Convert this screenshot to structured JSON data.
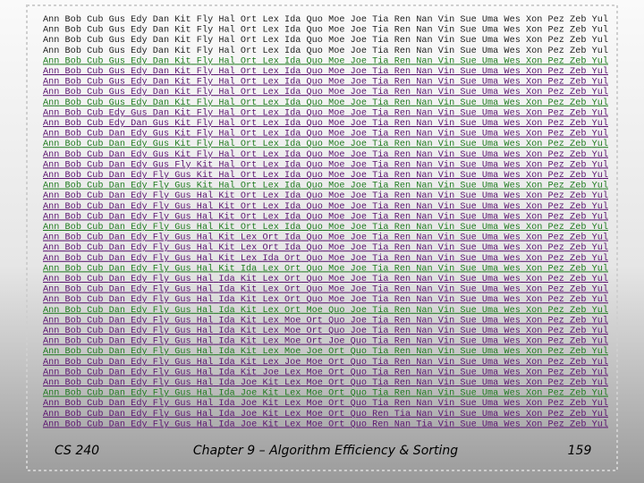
{
  "trace": {
    "rows": [
      "Ann Bob Cub Gus Edy Dan Kit Fly Hal Ort Lex Ida Quo Moe Joe Tia Ren Nan Vin Sue Uma Wes Xon Pez Zeb Yul",
      "Ann Bob Cub Gus Edy Dan Kit Fly Hal Ort Lex Ida Quo Moe Joe Tia Ren Nan Vin Sue Uma Wes Xon Pez Zeb Yul",
      "Ann Bob Cub Gus Edy Dan Kit Fly Hal Ort Lex Ida Quo Moe Joe Tia Ren Nan Vin Sue Uma Wes Xon Pez Zeb Yul",
      "Ann Bob Cub Gus Edy Dan Kit Fly Hal Ort Lex Ida Quo Moe Joe Tia Ren Nan Vin Sue Uma Wes Xon Pez Zeb Yul",
      "Ann Bob Cub Gus Edy Dan Kit Fly Hal Ort Lex Ida Quo Moe Joe Tia Ren Nan Vin Sue Uma Wes Xon Pez Zeb Yul",
      "Ann Bob Cub Gus Edy Dan Kit Fly Hal Ort Lex Ida Quo Moe Joe Tia Ren Nan Vin Sue Uma Wes Xon Pez Zeb Yul",
      "Ann Bob Cub Gus Edy Dan Kit Fly Hal Ort Lex Ida Quo Moe Joe Tia Ren Nan Vin Sue Uma Wes Xon Pez Zeb Yul",
      "Ann Bob Cub Gus Edy Dan Kit Fly Hal Ort Lex Ida Quo Moe Joe Tia Ren Nan Vin Sue Uma Wes Xon Pez Zeb Yul",
      "Ann Bob Cub Gus Edy Dan Kit Fly Hal Ort Lex Ida Quo Moe Joe Tia Ren Nan Vin Sue Uma Wes Xon Pez Zeb Yul",
      "Ann Bob Cub Edy Gus Dan Kit Fly Hal Ort Lex Ida Quo Moe Joe Tia Ren Nan Vin Sue Uma Wes Xon Pez Zeb Yul",
      "Ann Bob Cub Edy Dan Gus Kit Fly Hal Ort Lex Ida Quo Moe Joe Tia Ren Nan Vin Sue Uma Wes Xon Pez Zeb Yul",
      "Ann Bob Cub Dan Edy Gus Kit Fly Hal Ort Lex Ida Quo Moe Joe Tia Ren Nan Vin Sue Uma Wes Xon Pez Zeb Yul",
      "Ann Bob Cub Dan Edy Gus Kit Fly Hal Ort Lex Ida Quo Moe Joe Tia Ren Nan Vin Sue Uma Wes Xon Pez Zeb Yul",
      "Ann Bob Cub Dan Edy Gus Kit Fly Hal Ort Lex Ida Quo Moe Joe Tia Ren Nan Vin Sue Uma Wes Xon Pez Zeb Yul",
      "Ann Bob Cub Dan Edy Gus Fly Kit Hal Ort Lex Ida Quo Moe Joe Tia Ren Nan Vin Sue Uma Wes Xon Pez Zeb Yul",
      "Ann Bob Cub Dan Edy Fly Gus Kit Hal Ort Lex Ida Quo Moe Joe Tia Ren Nan Vin Sue Uma Wes Xon Pez Zeb Yul",
      "Ann Bob Cub Dan Edy Fly Gus Kit Hal Ort Lex Ida Quo Moe Joe Tia Ren Nan Vin Sue Uma Wes Xon Pez Zeb Yul",
      "Ann Bob Cub Dan Edy Fly Gus Hal Kit Ort Lex Ida Quo Moe Joe Tia Ren Nan Vin Sue Uma Wes Xon Pez Zeb Yul",
      "Ann Bob Cub Dan Edy Fly Gus Hal Kit Ort Lex Ida Quo Moe Joe Tia Ren Nan Vin Sue Uma Wes Xon Pez Zeb Yul",
      "Ann Bob Cub Dan Edy Fly Gus Hal Kit Ort Lex Ida Quo Moe Joe Tia Ren Nan Vin Sue Uma Wes Xon Pez Zeb Yul",
      "Ann Bob Cub Dan Edy Fly Gus Hal Kit Ort Lex Ida Quo Moe Joe Tia Ren Nan Vin Sue Uma Wes Xon Pez Zeb Yul",
      "Ann Bob Cub Dan Edy Fly Gus Hal Kit Lex Ort Ida Quo Moe Joe Tia Ren Nan Vin Sue Uma Wes Xon Pez Zeb Yul",
      "Ann Bob Cub Dan Edy Fly Gus Hal Kit Lex Ort Ida Quo Moe Joe Tia Ren Nan Vin Sue Uma Wes Xon Pez Zeb Yul",
      "Ann Bob Cub Dan Edy Fly Gus Hal Kit Lex Ida Ort Quo Moe Joe Tia Ren Nan Vin Sue Uma Wes Xon Pez Zeb Yul",
      "Ann Bob Cub Dan Edy Fly Gus Hal Kit Ida Lex Ort Quo Moe Joe Tia Ren Nan Vin Sue Uma Wes Xon Pez Zeb Yul",
      "Ann Bob Cub Dan Edy Fly Gus Hal Ida Kit Lex Ort Quo Moe Joe Tia Ren Nan Vin Sue Uma Wes Xon Pez Zeb Yul",
      "Ann Bob Cub Dan Edy Fly Gus Hal Ida Kit Lex Ort Quo Moe Joe Tia Ren Nan Vin Sue Uma Wes Xon Pez Zeb Yul",
      "Ann Bob Cub Dan Edy Fly Gus Hal Ida Kit Lex Ort Quo Moe Joe Tia Ren Nan Vin Sue Uma Wes Xon Pez Zeb Yul",
      "Ann Bob Cub Dan Edy Fly Gus Hal Ida Kit Lex Ort Moe Quo Joe Tia Ren Nan Vin Sue Uma Wes Xon Pez Zeb Yul",
      "Ann Bob Cub Dan Edy Fly Gus Hal Ida Kit Lex Moe Ort Quo Joe Tia Ren Nan Vin Sue Uma Wes Xon Pez Zeb Yul",
      "Ann Bob Cub Dan Edy Fly Gus Hal Ida Kit Lex Moe Ort Quo Joe Tia Ren Nan Vin Sue Uma Wes Xon Pez Zeb Yul",
      "Ann Bob Cub Dan Edy Fly Gus Hal Ida Kit Lex Moe Ort Joe Quo Tia Ren Nan Vin Sue Uma Wes Xon Pez Zeb Yul",
      "Ann Bob Cub Dan Edy Fly Gus Hal Ida Kit Lex Moe Joe Ort Quo Tia Ren Nan Vin Sue Uma Wes Xon Pez Zeb Yul",
      "Ann Bob Cub Dan Edy Fly Gus Hal Ida Kit Lex Joe Moe Ort Quo Tia Ren Nan Vin Sue Uma Wes Xon Pez Zeb Yul",
      "Ann Bob Cub Dan Edy Fly Gus Hal Ida Kit Joe Lex Moe Ort Quo Tia Ren Nan Vin Sue Uma Wes Xon Pez Zeb Yul",
      "Ann Bob Cub Dan Edy Fly Gus Hal Ida Joe Kit Lex Moe Ort Quo Tia Ren Nan Vin Sue Uma Wes Xon Pez Zeb Yul",
      "Ann Bob Cub Dan Edy Fly Gus Hal Ida Joe Kit Lex Moe Ort Quo Tia Ren Nan Vin Sue Uma Wes Xon Pez Zeb Yul",
      "Ann Bob Cub Dan Edy Fly Gus Hal Ida Joe Kit Lex Moe Ort Quo Tia Ren Nan Vin Sue Uma Wes Xon Pez Zeb Yul",
      "Ann Bob Cub Dan Edy Fly Gus Hal Ida Joe Kit Lex Moe Ort Quo Ren Tia Nan Vin Sue Uma Wes Xon Pez Zeb Yul",
      "Ann Bob Cub Dan Edy Fly Gus Hal Ida Joe Kit Lex Moe Ort Quo Ren Nan Tia Vin Sue Uma Wes Xon Pez Zeb Yul"
    ]
  },
  "footer": {
    "course": "CS 240",
    "title": "Chapter 9 – Algorithm Efficiency & Sorting",
    "page": "159"
  }
}
